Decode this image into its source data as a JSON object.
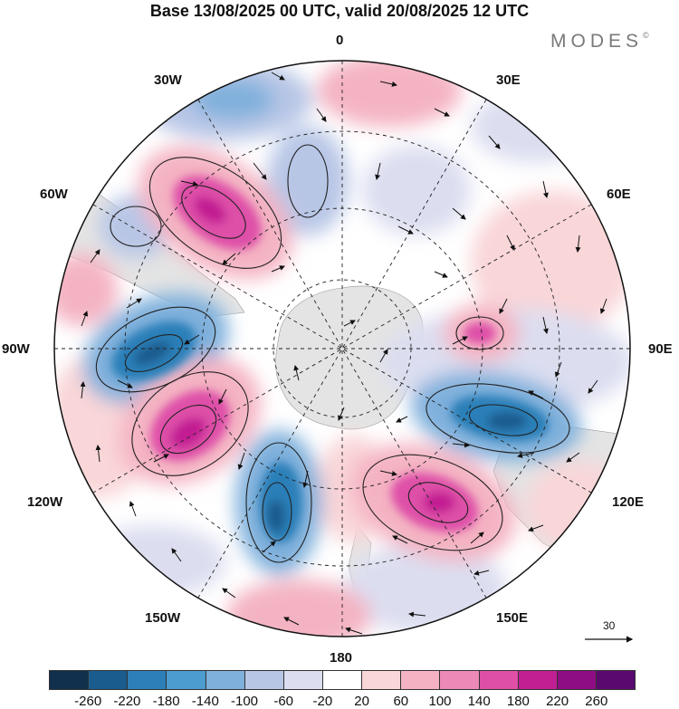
{
  "title": "Base 13/08/2025 00 UTC, valid 20/08/2025 12 UTC",
  "brand": "MODES",
  "brand_mark": "©",
  "longitude_labels": {
    "lon_0": "0",
    "lon_30e": "30E",
    "lon_60e": "60E",
    "lon_90e": "90E",
    "lon_120e": "120E",
    "lon_150e": "150E",
    "lon_180": "180",
    "lon_150w": "150W",
    "lon_120w": "120W",
    "lon_90w": "90W",
    "lon_60w": "60W",
    "lon_30w": "30W"
  },
  "vector_scale": "30",
  "colorbar": {
    "colors": [
      "#10304d",
      "#1b5c8e",
      "#2c7fb8",
      "#4c9cd0",
      "#7fb0dc",
      "#b8c6e6",
      "#dcdef0",
      "#ffffff",
      "#f9d6d8",
      "#f4b3c2",
      "#ec89b6",
      "#de4fa8",
      "#c21f93",
      "#8f0d84",
      "#5a0a6e"
    ],
    "labels": [
      "-260",
      "-220",
      "-180",
      "-140",
      "-100",
      "-60",
      "-20",
      "20",
      "60",
      "100",
      "140",
      "180",
      "220",
      "260"
    ]
  },
  "colors": {
    "land": "#e4e4e4",
    "grid": "#222222",
    "positive": "#de4fa8",
    "negative": "#2c7fb8"
  }
}
